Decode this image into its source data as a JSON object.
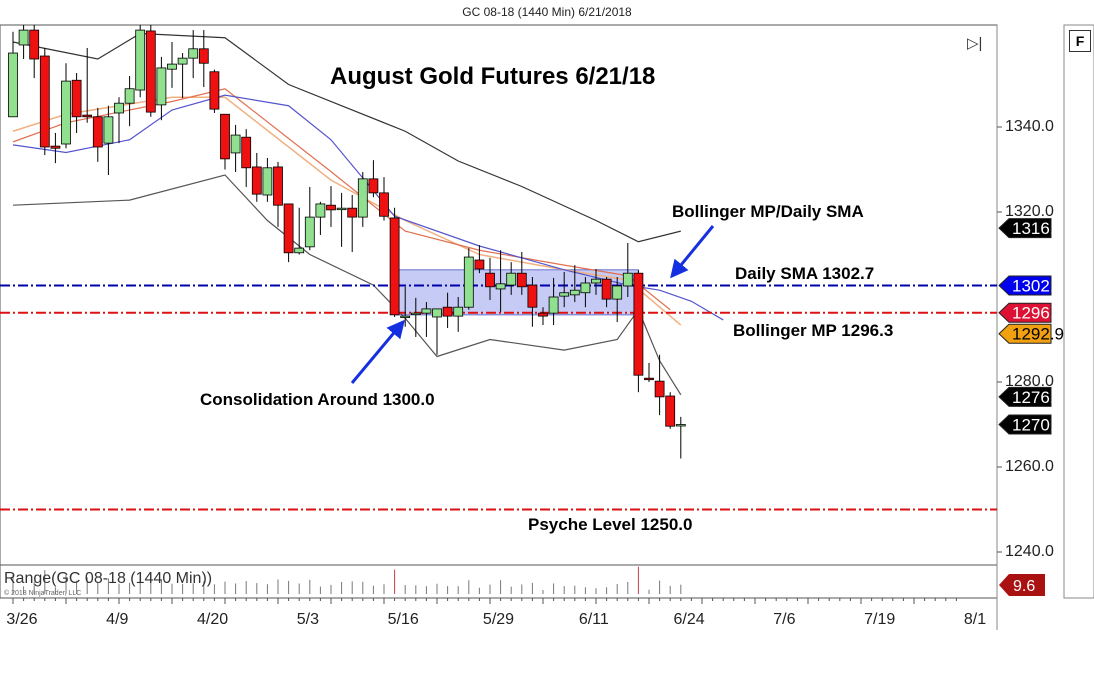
{
  "window_title": "GC 08-18 (1440 Min)  6/21/2018",
  "buttons": {
    "f_label": "F",
    "scroll_end_icon": "skip-to-end-icon"
  },
  "chart_data": {
    "type": "candlestick",
    "title": "August Gold Futures 6/21/18",
    "y_ticks": [
      "1340.0",
      "1320.0",
      "1280.0",
      "1260.0",
      "1240.0"
    ],
    "y_tick_values": [
      1340,
      1320,
      1280,
      1260,
      1240
    ],
    "x_tick_labels": [
      "3/26",
      "4/9",
      "4/20",
      "5/3",
      "5/16",
      "5/29",
      "6/11",
      "6/24",
      "7/6",
      "7/19",
      "8/1"
    ],
    "colors": {
      "up": "#90e090",
      "down": "#ee1111",
      "sma_line": "#0000cc",
      "mp_line": "#dd1111",
      "box_fill": "#a0a8ee"
    },
    "candles": [
      [
        1342.4,
        1362.4,
        1342.4,
        1357.4
      ],
      [
        1359.3,
        1364,
        1356,
        1362.8
      ],
      [
        1362.8,
        1364,
        1351.5,
        1356
      ],
      [
        1356.7,
        1358.6,
        1333.4,
        1335.3
      ],
      [
        1335.5,
        1338.6,
        1331.5,
        1335
      ],
      [
        1336,
        1355,
        1335,
        1350.8
      ],
      [
        1351,
        1352.7,
        1338.6,
        1342.4
      ],
      [
        1342.8,
        1358.6,
        1341,
        1342.4
      ],
      [
        1342.4,
        1344.5,
        1331.8,
        1335.3
      ],
      [
        1336.2,
        1345,
        1328.7,
        1342.4
      ],
      [
        1343.3,
        1347,
        1336.2,
        1345.6
      ],
      [
        1345.6,
        1352,
        1340.2,
        1349
      ],
      [
        1348.7,
        1364,
        1347,
        1362.8
      ],
      [
        1362.6,
        1364,
        1342.4,
        1343.5
      ],
      [
        1345.2,
        1356.5,
        1341.6,
        1353.9
      ],
      [
        1353.6,
        1360,
        1349.2,
        1354.8
      ],
      [
        1354.8,
        1357.4,
        1346.8,
        1356.2
      ],
      [
        1356.2,
        1362.8,
        1351.5,
        1358.4
      ],
      [
        1358.4,
        1362.8,
        1349.4,
        1355
      ],
      [
        1353,
        1353.5,
        1343.3,
        1344.2
      ],
      [
        1343,
        1343,
        1330,
        1332.5
      ],
      [
        1333.9,
        1340.5,
        1329.4,
        1338.1
      ],
      [
        1337.6,
        1339.5,
        1325.9,
        1330.4
      ],
      [
        1330.6,
        1333.9,
        1322.4,
        1324.2
      ],
      [
        1324,
        1332.7,
        1322.4,
        1330.4
      ],
      [
        1330.6,
        1331.8,
        1316.5,
        1321.6
      ],
      [
        1321.9,
        1322,
        1308.2,
        1310.4
      ],
      [
        1310.4,
        1321,
        1310,
        1311.5
      ],
      [
        1311.8,
        1325.9,
        1311,
        1318.8
      ],
      [
        1318.8,
        1322.4,
        1314.6,
        1321.9
      ],
      [
        1321.6,
        1326.1,
        1316.5,
        1320.5
      ],
      [
        1320.9,
        1324.5,
        1311.8,
        1320.9
      ],
      [
        1320.9,
        1324,
        1310.6,
        1318.8
      ],
      [
        1318.8,
        1329.4,
        1316.5,
        1327.8
      ],
      [
        1327.8,
        1332.2,
        1323.5,
        1324.5
      ],
      [
        1324.5,
        1328.2,
        1318,
        1319
      ],
      [
        1318.6,
        1321,
        1295.3,
        1295.8
      ],
      [
        1295.5,
        1302.4,
        1293,
        1295.5
      ],
      [
        1296,
        1299.8,
        1290.6,
        1296.2
      ],
      [
        1296.2,
        1298.8,
        1290.6,
        1297.2
      ],
      [
        1295.3,
        1297.2,
        1286.4,
        1297.2
      ],
      [
        1297.6,
        1301,
        1292.7,
        1295.5
      ],
      [
        1295.5,
        1300,
        1291.8,
        1297.6
      ],
      [
        1297.6,
        1311.5,
        1297,
        1309.4
      ],
      [
        1308.7,
        1312.2,
        1305.6,
        1306.6
      ],
      [
        1305.6,
        1309.2,
        1299.3,
        1302.4
      ],
      [
        1301.9,
        1311,
        1296.5,
        1303.1
      ],
      [
        1302.8,
        1308.2,
        1300.5,
        1305.6
      ],
      [
        1305.6,
        1310.6,
        1300.5,
        1302.4
      ],
      [
        1302.8,
        1304.7,
        1293,
        1297.6
      ],
      [
        1296.2,
        1297.6,
        1293.4,
        1295.5
      ],
      [
        1296.2,
        1304.5,
        1293.4,
        1300
      ],
      [
        1300.2,
        1305.9,
        1297.6,
        1301
      ],
      [
        1300.5,
        1307.5,
        1298.8,
        1301.6
      ],
      [
        1301,
        1304.7,
        1297.6,
        1303.3
      ],
      [
        1303.3,
        1306.6,
        1300.5,
        1304.2
      ],
      [
        1304.2,
        1304.7,
        1297.6,
        1299.5
      ],
      [
        1299.5,
        1304.7,
        1294.1,
        1302.6
      ],
      [
        1302.6,
        1312.7,
        1300,
        1305.6
      ],
      [
        1305.6,
        1306.3,
        1277.6,
        1281.6
      ],
      [
        1280.9,
        1284.5,
        1280,
        1280.7
      ],
      [
        1280.2,
        1286.4,
        1272.2,
        1276.5
      ],
      [
        1276.7,
        1277.6,
        1269,
        1269.6
      ],
      [
        1270,
        1271.8,
        1262,
        1270
      ]
    ],
    "candle_fields": [
      "open",
      "high",
      "low",
      "close"
    ],
    "bollinger_upper": [
      [
        0,
        1360
      ],
      [
        4,
        1358
      ],
      [
        8,
        1356
      ],
      [
        12,
        1362
      ],
      [
        20,
        1361
      ],
      [
        26,
        1350
      ],
      [
        37,
        1339
      ],
      [
        42,
        1332
      ],
      [
        48,
        1326
      ],
      [
        55,
        1318
      ],
      [
        59,
        1313
      ],
      [
        63,
        1315.5
      ]
    ],
    "bollinger_lower": [
      [
        0,
        1321.6
      ],
      [
        11,
        1322.8
      ],
      [
        20,
        1328.7
      ],
      [
        24,
        1318
      ],
      [
        28,
        1310
      ],
      [
        34,
        1302.8
      ],
      [
        37,
        1295
      ],
      [
        40,
        1286
      ],
      [
        45,
        1290
      ],
      [
        52,
        1287.5
      ],
      [
        57,
        1290
      ],
      [
        59,
        1297
      ],
      [
        61,
        1285
      ],
      [
        63,
        1277
      ]
    ],
    "bollinger_mid": [
      [
        0,
        1335.8
      ],
      [
        5,
        1334
      ],
      [
        11,
        1337
      ],
      [
        15,
        1344
      ],
      [
        20,
        1347.5
      ],
      [
        26,
        1345
      ],
      [
        30,
        1337
      ],
      [
        36,
        1319
      ],
      [
        44,
        1312
      ],
      [
        52,
        1306.4
      ],
      [
        58,
        1302.8
      ],
      [
        61,
        1301.6
      ],
      [
        64,
        1299
      ],
      [
        67,
        1294.6
      ]
    ],
    "sma_fast": [
      [
        0,
        1339
      ],
      [
        5,
        1343
      ],
      [
        15,
        1347
      ],
      [
        20,
        1347
      ],
      [
        30,
        1327.5
      ],
      [
        37,
        1318
      ],
      [
        44,
        1310
      ],
      [
        52,
        1306.4
      ],
      [
        58,
        1304
      ],
      [
        63,
        1293.4
      ]
    ],
    "sma_slow": [
      [
        0,
        1336.5
      ],
      [
        5,
        1341
      ],
      [
        15,
        1346
      ],
      [
        20,
        1349
      ],
      [
        30,
        1329.5
      ],
      [
        37,
        1315.5
      ],
      [
        44,
        1311
      ],
      [
        52,
        1307.5
      ],
      [
        58,
        1305
      ],
      [
        62,
        1297
      ]
    ],
    "horizontal_lines": [
      {
        "value": 1302.7,
        "color": "#0000aa"
      },
      {
        "value": 1296.3,
        "color": "#dd1111"
      },
      {
        "value": 1250.0,
        "color": "#dd1111"
      }
    ],
    "consolidation_box": {
      "from_bar": 36,
      "to_bar": 59,
      "low": 1295.8,
      "high": 1306.4
    },
    "price_tags": [
      {
        "text": "1316.2",
        "value": 1316.2,
        "bg": "#000000",
        "fg": "#ffffff"
      },
      {
        "text": "1302.7",
        "value": 1302.7,
        "bg": "#0000ee",
        "fg": "#ffffff"
      },
      {
        "text": "1296.3",
        "value": 1296.3,
        "bg": "#dd1133",
        "fg": "#ffffff"
      },
      {
        "text": "1292.9",
        "value": 1292.9,
        "bg": "#f0a010",
        "fg": "#000000"
      },
      {
        "text": "1276.5",
        "value": 1276.5,
        "bg": "#000000",
        "fg": "#ffffff"
      },
      {
        "text": "1270.0",
        "value": 1270.0,
        "bg": "#000000",
        "fg": "#ffffff"
      }
    ],
    "annotations": {
      "bollinger_sma": "Bollinger MP/Daily SMA",
      "daily_sma": "Daily SMA 1302.7",
      "bollinger_mp": "Bollinger MP 1296.3",
      "consolidation": "Consolidation Around 1300.0",
      "psyche": "Psyche Level 1250.0"
    },
    "indicator": {
      "label": "Range(GC 08-18 (1440 Min))",
      "value_tag": "9.6",
      "tag_bg": "#aa1111"
    },
    "copyright": "© 2018 NinjaTrader, LLC"
  }
}
